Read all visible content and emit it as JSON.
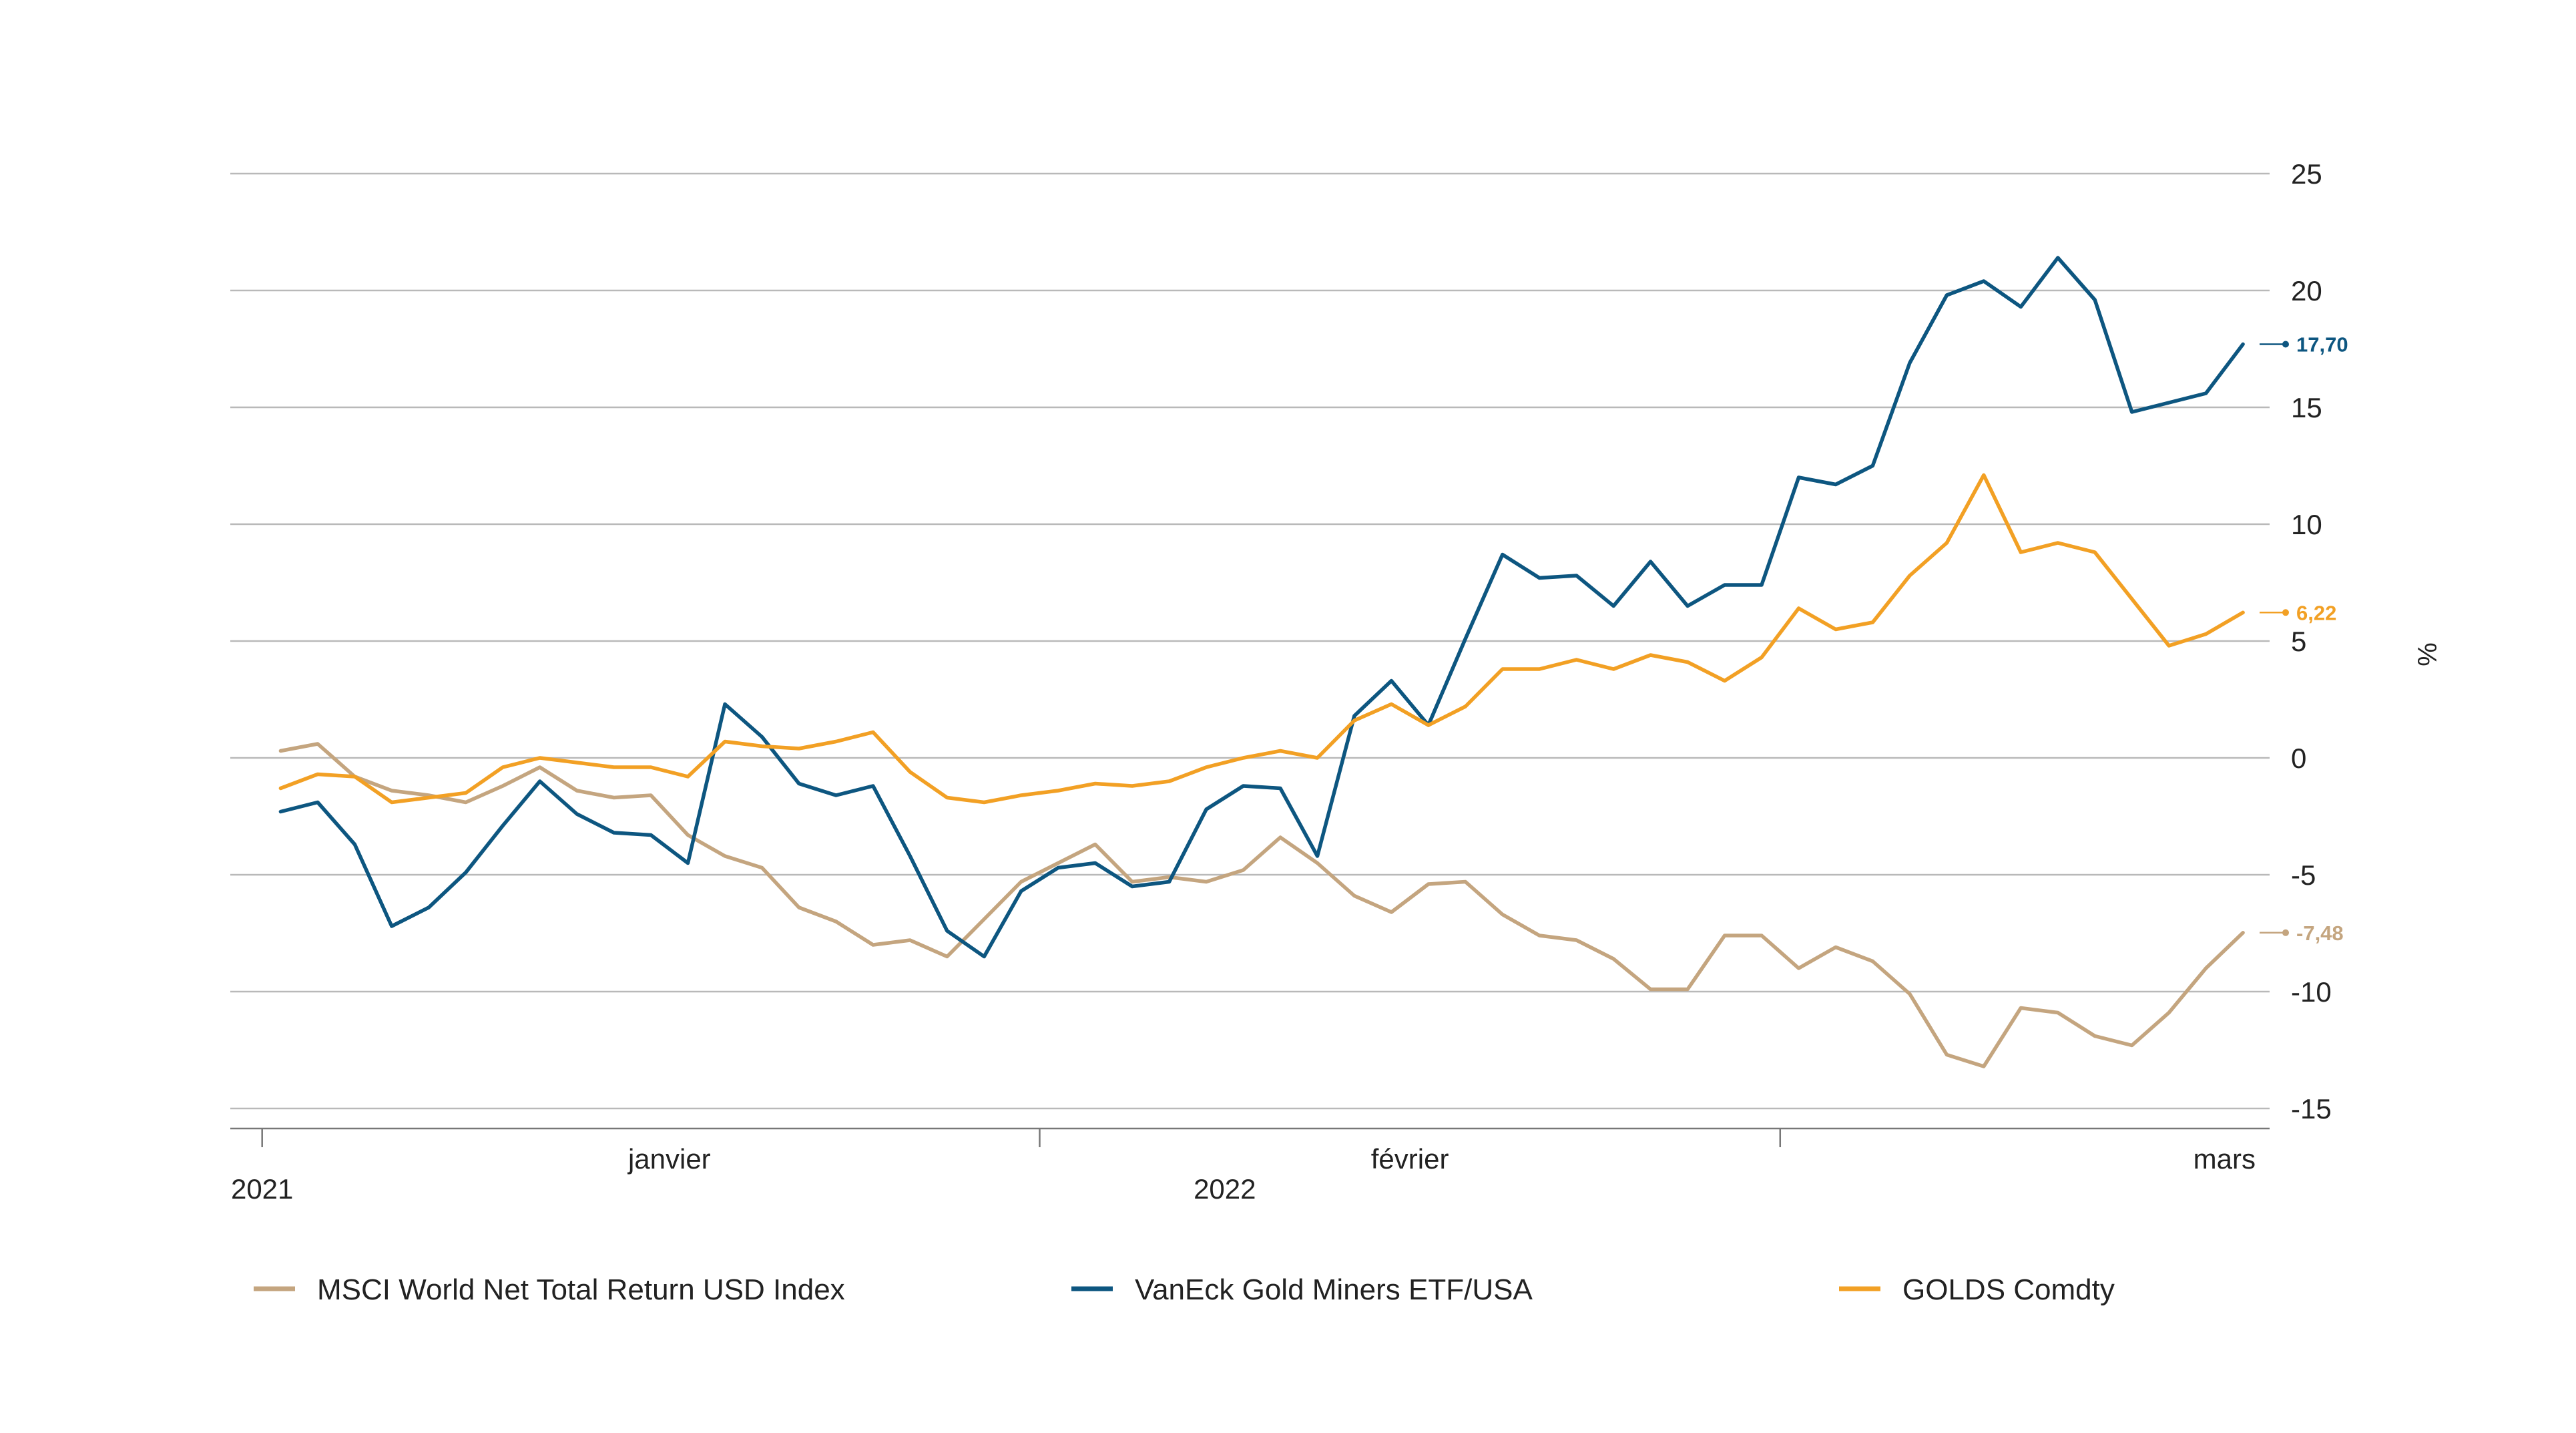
{
  "chart_data": {
    "type": "line",
    "title": "",
    "xlabel": "",
    "ylabel": "%",
    "ylim": [
      -15,
      25
    ],
    "yticks": [
      {
        "value": 25,
        "label": "25"
      },
      {
        "value": 20,
        "label": "20"
      },
      {
        "value": 15,
        "label": "15"
      },
      {
        "value": 10,
        "label": "10"
      },
      {
        "value": 5,
        "label": "5"
      },
      {
        "value": 0,
        "label": "0"
      },
      {
        "value": -5,
        "label": "-5"
      },
      {
        "value": -10,
        "label": "-10"
      },
      {
        "value": -15,
        "label": "-15"
      }
    ],
    "xlim": [
      -1.36,
      53.9
    ],
    "x_tick_marks": [
      -0.5,
      20.5,
      40.5
    ],
    "x_labels": [
      {
        "x": 10.5,
        "label": "janvier",
        "row": 1
      },
      {
        "x": 30.5,
        "label": "février",
        "row": 1
      },
      {
        "x": 52.5,
        "label": "mars",
        "row": 1
      },
      {
        "x": -0.5,
        "label": "2021",
        "row": 2
      },
      {
        "x": 25.5,
        "label": "2022",
        "row": 2
      }
    ],
    "x": [
      0,
      1,
      2,
      3,
      4,
      5,
      6,
      7,
      8,
      9,
      10,
      11,
      12,
      13,
      14,
      15,
      16,
      17,
      18,
      19,
      20,
      21,
      22,
      23,
      24,
      25,
      26,
      27,
      28,
      29,
      30,
      31,
      32,
      33,
      34,
      35,
      36,
      37,
      38,
      39,
      40,
      41,
      42,
      43,
      44,
      45,
      46,
      47,
      48,
      49,
      50,
      51,
      52,
      53
    ],
    "grid": true,
    "legend_position": "bottom",
    "series": [
      {
        "name": "MSCI World Net Total Return USD Index",
        "color": "#c4a57f",
        "values": [
          0.3,
          0.6,
          -0.8,
          -1.4,
          -1.6,
          -1.9,
          -1.2,
          -0.4,
          -1.4,
          -1.7,
          -1.6,
          -3.3,
          -4.2,
          -4.7,
          -6.4,
          -7,
          -8,
          -7.8,
          -8.5,
          -6.9,
          -5.3,
          -4.5,
          -3.7,
          -5.3,
          -5.1,
          -5.3,
          -4.8,
          -3.4,
          -4.5,
          -5.9,
          -6.6,
          -5.4,
          -5.3,
          -6.7,
          -7.6,
          -7.8,
          -8.6,
          -9.9,
          -9.9,
          -7.6,
          -7.6,
          -9,
          -8.1,
          -8.7,
          -10.1,
          -12.7,
          -13.2,
          -10.7,
          -10.9,
          -11.9,
          -12.3,
          -10.9,
          -9,
          -7.48
        ]
      },
      {
        "name": "VanEck Gold Miners ETF/USA",
        "color": "#0d5680",
        "values": [
          -2.3,
          -1.9,
          -3.7,
          -7.2,
          -6.4,
          -4.9,
          -2.9,
          -1,
          -2.4,
          -3.2,
          -3.3,
          -4.5,
          2.3,
          0.9,
          -1.1,
          -1.6,
          -1.2,
          -4.2,
          -7.4,
          -8.5,
          -5.7,
          -4.7,
          -4.5,
          -5.5,
          -5.3,
          -2.2,
          -1.2,
          -1.3,
          -4.2,
          1.8,
          3.3,
          1.4,
          5.1,
          8.7,
          7.7,
          7.8,
          6.5,
          8.4,
          6.5,
          7.4,
          7.4,
          12,
          11.7,
          12.5,
          16.9,
          19.8,
          20.4,
          19.3,
          21.4,
          19.6,
          14.8,
          15.2,
          15.6,
          17.7
        ]
      },
      {
        "name": "GOLDS Comdty",
        "color": "#f2a024",
        "values": [
          -1.3,
          -0.7,
          -0.8,
          -1.9,
          -1.7,
          -1.5,
          -0.4,
          0,
          -0.2,
          -0.4,
          -0.4,
          -0.8,
          0.7,
          0.5,
          0.4,
          0.7,
          1.1,
          -0.6,
          -1.7,
          -1.9,
          -1.6,
          -1.4,
          -1.1,
          -1.2,
          -1,
          -0.4,
          0,
          0.3,
          0,
          1.6,
          2.3,
          1.4,
          2.2,
          3.8,
          3.8,
          4.2,
          3.8,
          4.4,
          4.1,
          3.3,
          4.3,
          6.4,
          5.5,
          5.8,
          7.8,
          9.2,
          12.1,
          8.8,
          9.2,
          8.8,
          6.8,
          4.8,
          5.3,
          6.22
        ]
      }
    ],
    "end_labels": [
      {
        "series": 1,
        "label": "17,70"
      },
      {
        "series": 2,
        "label": "6,22"
      },
      {
        "series": 0,
        "label": "-7,48"
      }
    ]
  }
}
